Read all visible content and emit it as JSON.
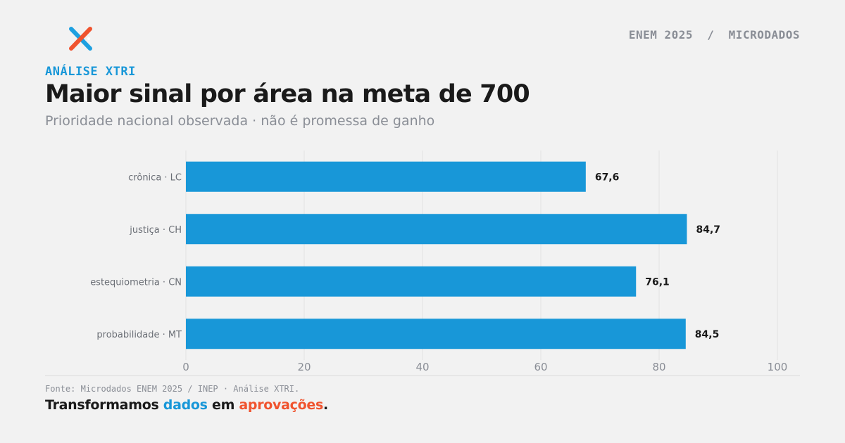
{
  "header": {
    "brand_text": "ENEM 2025  /  MICRODADOS",
    "kicker": "ANÁLISE XTRI",
    "title": "Maior sinal por área na meta de 700",
    "subtitle": "Prioridade nacional observada · não é promessa de ganho"
  },
  "logo": {
    "icon": "xtri-x-logo-icon",
    "colors": [
      "#1ea0e0",
      "#f0532e"
    ]
  },
  "chart_data": {
    "type": "bar",
    "orientation": "horizontal",
    "title": "",
    "xlabel": "",
    "ylabel": "",
    "categories": [
      "crônica · LC",
      "justiça · CH",
      "estequiometria · CN",
      "probabilidade · MT"
    ],
    "values": [
      67.6,
      84.7,
      76.1,
      84.5
    ],
    "value_labels": [
      "67,6",
      "84,7",
      "76,1",
      "84,5"
    ],
    "xlim": [
      0,
      100
    ],
    "xticks": [
      0,
      20,
      40,
      60,
      80,
      100
    ],
    "grid": "vertical",
    "bar_color": "#1897d8"
  },
  "footer": {
    "source": "Fonte: Microdados ENEM 2025 / INEP · Análise XTRI.",
    "tagline_part1": "Transformamos ",
    "tagline_part2": "dados",
    "tagline_part3": " em ",
    "tagline_part4": "aprovações",
    "tagline_part5": "."
  }
}
